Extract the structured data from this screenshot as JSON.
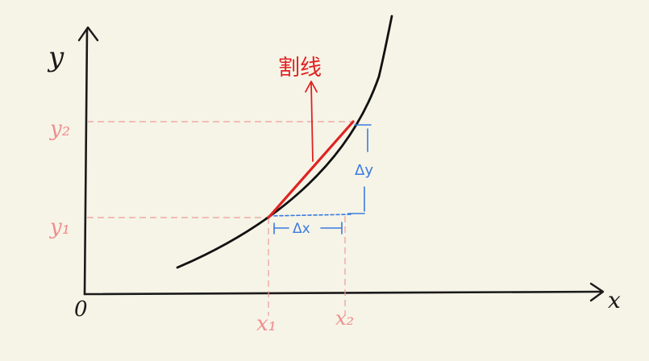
{
  "labels": {
    "origin": "0",
    "x_axis": "x",
    "y_axis": "y",
    "x1": "x₁",
    "x2": "x₂",
    "y1": "y₁",
    "y2": "y₂",
    "delta_x": "Δx",
    "delta_y": "Δy",
    "secant": "割线"
  },
  "colors": {
    "background": "#f6f4e7",
    "axes": "#1a1a1a",
    "curve": "#111111",
    "secant": "#e02222",
    "guides": "#ef9a9a",
    "delta": "#3a7be0",
    "label_pink": "#ef8e8e"
  }
}
